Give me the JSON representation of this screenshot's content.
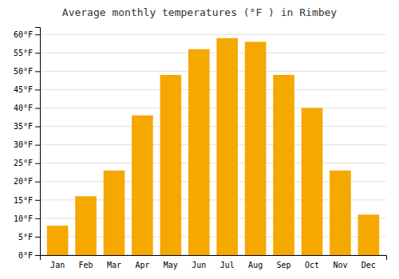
{
  "chart_data": {
    "type": "bar",
    "title": "Average monthly temperatures (°F ) in Rimbey",
    "categories": [
      "Jan",
      "Feb",
      "Mar",
      "Apr",
      "May",
      "Jun",
      "Jul",
      "Aug",
      "Sep",
      "Oct",
      "Nov",
      "Dec"
    ],
    "values": [
      8,
      16,
      23,
      38,
      49,
      56,
      59,
      58,
      49,
      40,
      23,
      11
    ],
    "color": "#F5A800",
    "ylim": [
      0,
      62
    ],
    "yticks": [
      {
        "value": 0,
        "label": "0°F"
      },
      {
        "value": 5,
        "label": "5°F"
      },
      {
        "value": 10,
        "label": "10°F"
      },
      {
        "value": 15,
        "label": "15°F"
      },
      {
        "value": 20,
        "label": "20°F"
      },
      {
        "value": 25,
        "label": "25°F"
      },
      {
        "value": 30,
        "label": "30°F"
      },
      {
        "value": 35,
        "label": "35°F"
      },
      {
        "value": 40,
        "label": "40°F"
      },
      {
        "value": 45,
        "label": "45°F"
      },
      {
        "value": 50,
        "label": "50°F"
      },
      {
        "value": 55,
        "label": "55°F"
      },
      {
        "value": 60,
        "label": "60°F"
      }
    ],
    "grid": true
  }
}
